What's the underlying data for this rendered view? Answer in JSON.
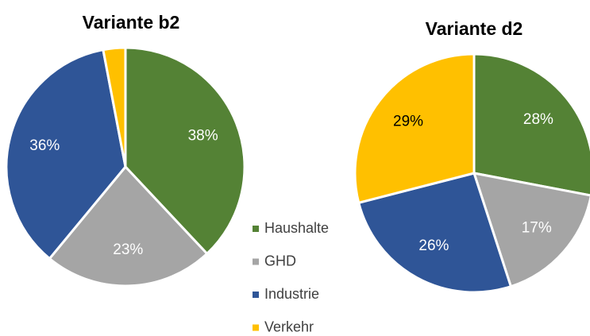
{
  "chart_data": [
    {
      "type": "pie",
      "title": "Variante b2",
      "categories": [
        "Haushalte",
        "GHD",
        "Industrie",
        "Verkehr"
      ],
      "values": [
        38,
        23,
        36,
        3
      ],
      "value_labels": [
        "38%",
        "23%",
        "36%",
        null
      ],
      "colors": [
        "#548235",
        "#a5a5a5",
        "#2f5597",
        "#ffc000"
      ]
    },
    {
      "type": "pie",
      "title": "Variante d2",
      "categories": [
        "Haushalte",
        "GHD",
        "Industrie",
        "Verkehr"
      ],
      "values": [
        28,
        17,
        26,
        29
      ],
      "value_labels": [
        "28%",
        "17%",
        "26%",
        "29%"
      ],
      "colors": [
        "#548235",
        "#a5a5a5",
        "#2f5597",
        "#ffc000"
      ]
    }
  ]
}
